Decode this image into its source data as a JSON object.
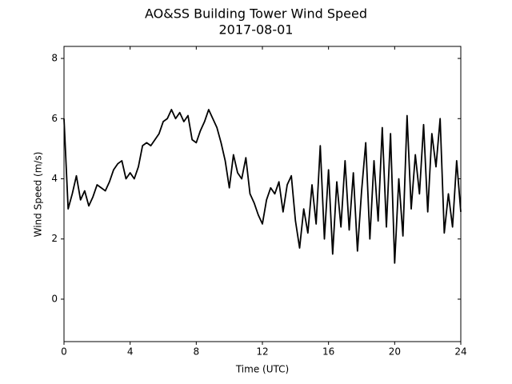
{
  "chart_data": {
    "type": "line",
    "title": "AO&SS Building Tower Wind Speed",
    "subtitle": "2017-08-01",
    "x_label": "Time (UTC)",
    "y_label": "Wind Speed (m/s)",
    "color": "#000000",
    "xlim": [
      0,
      24
    ],
    "xticks": [
      0,
      4,
      8,
      12,
      16,
      20,
      24
    ],
    "ylim": [
      -1.41,
      8.4
    ],
    "yticks": [
      0,
      2,
      4,
      6,
      8
    ],
    "x": [
      0,
      0.25,
      0.5,
      0.75,
      1,
      1.25,
      1.5,
      1.75,
      2,
      2.25,
      2.5,
      2.75,
      3,
      3.25,
      3.5,
      3.75,
      4,
      4.25,
      4.5,
      4.75,
      5,
      5.25,
      5.5,
      5.75,
      6,
      6.25,
      6.5,
      6.75,
      7,
      7.25,
      7.5,
      7.75,
      8,
      8.25,
      8.5,
      8.75,
      9,
      9.25,
      9.5,
      9.75,
      10,
      10.25,
      10.5,
      10.75,
      11,
      11.25,
      11.5,
      11.75,
      12,
      12.25,
      12.5,
      12.75,
      13,
      13.25,
      13.5,
      13.75,
      14,
      14.25,
      14.5,
      14.75,
      15,
      15.25,
      15.5,
      15.75,
      16,
      16.25,
      16.5,
      16.75,
      17,
      17.25,
      17.5,
      17.75,
      18,
      18.25,
      18.5,
      18.75,
      19,
      19.25,
      19.5,
      19.75,
      20,
      20.25,
      20.5,
      20.75,
      21,
      21.25,
      21.5,
      21.75,
      22,
      22.25,
      22.5,
      22.75,
      23,
      23.25,
      23.5,
      23.75,
      24
    ],
    "values": [
      6.0,
      3.0,
      3.5,
      4.1,
      3.3,
      3.6,
      3.1,
      3.4,
      3.8,
      3.7,
      3.6,
      3.9,
      4.3,
      4.5,
      4.6,
      4.0,
      4.2,
      4.0,
      4.4,
      5.1,
      5.2,
      5.1,
      5.3,
      5.5,
      5.9,
      6.0,
      6.3,
      6.0,
      6.2,
      5.9,
      6.1,
      5.3,
      5.2,
      5.6,
      5.9,
      6.3,
      6.0,
      5.7,
      5.2,
      4.6,
      3.7,
      4.8,
      4.2,
      4.0,
      4.7,
      3.5,
      3.2,
      2.8,
      2.5,
      3.3,
      3.7,
      3.5,
      3.9,
      2.9,
      3.8,
      4.1,
      2.6,
      1.7,
      3.0,
      2.2,
      3.8,
      2.5,
      5.1,
      2.0,
      4.3,
      1.5,
      3.9,
      2.4,
      4.6,
      2.3,
      4.2,
      1.6,
      3.6,
      5.2,
      2.0,
      4.6,
      2.6,
      5.7,
      2.4,
      5.5,
      1.2,
      4.0,
      2.1,
      6.1,
      3.0,
      4.8,
      3.5,
      5.8,
      2.9,
      5.5,
      4.4,
      6.0,
      2.2,
      3.5,
      2.4,
      4.6,
      2.9
    ]
  }
}
